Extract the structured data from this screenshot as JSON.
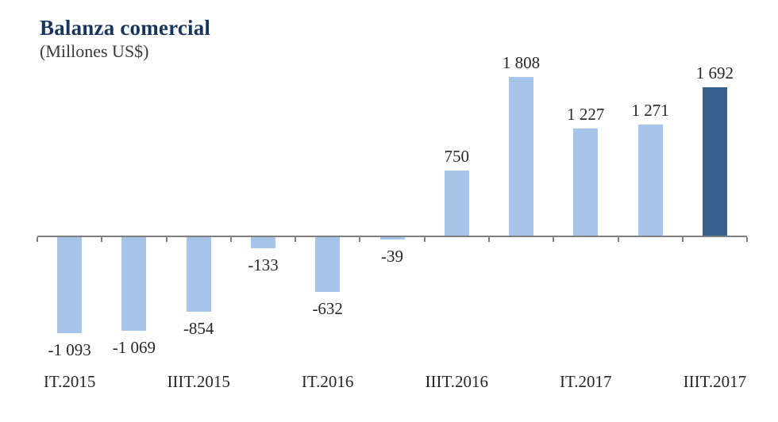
{
  "header": {
    "title": "Balanza comercial",
    "subtitle": "(Millones US$)"
  },
  "chart_data": {
    "type": "bar",
    "title": "Balanza comercial",
    "subtitle": "(Millones US$)",
    "values": [
      -1093,
      -1069,
      -854,
      -133,
      -632,
      -39,
      750,
      1808,
      1227,
      1271,
      1692
    ],
    "value_labels": [
      "-1 093",
      "-1 069",
      "-854",
      "-133",
      "-632",
      "-39",
      "750",
      "1 808",
      "1 227",
      "1 271",
      "1 692"
    ],
    "x_tick_labels": [
      "IT.2015",
      "",
      "IIIT.2015",
      "",
      "IT.2016",
      "",
      "IIIT.2016",
      "",
      "IT.2017",
      "",
      "IIIT.2017"
    ],
    "highlight_index": 10,
    "bar_color": "#A7C5E8",
    "highlight_color": "#36618E",
    "axis_color": "#808080",
    "label_color": "#262626",
    "title_color": "#17365D",
    "subtitle_color": "#3A3A3A",
    "ylim": [
      -1200,
      1900
    ],
    "xlabel": "",
    "ylabel": "",
    "grid": false,
    "legend": null
  }
}
